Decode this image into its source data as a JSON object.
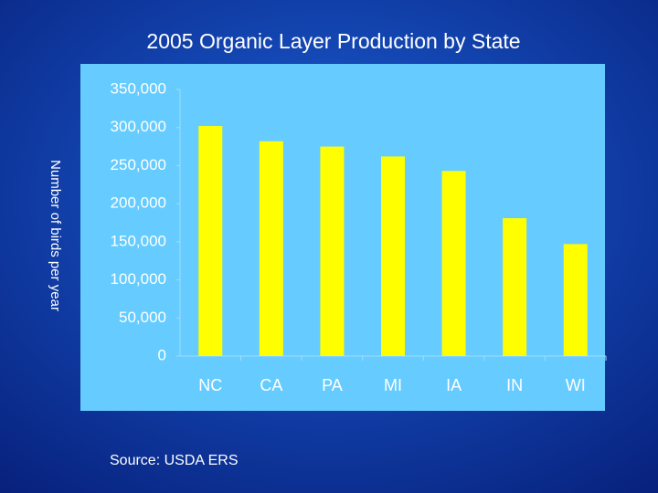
{
  "chart_data": {
    "type": "bar",
    "title": "2005 Organic Layer Production by State",
    "y_label": "Number of birds per year",
    "categories": [
      "NC",
      "CA",
      "PA",
      "MI",
      "IA",
      "IN",
      "WI"
    ],
    "values": [
      302000,
      282000,
      275000,
      262000,
      243000,
      181000,
      147000
    ],
    "color": "#ffff00",
    "ylim": [
      0,
      350000
    ],
    "yticks": [
      0,
      {
        "value": 50000,
        "label": "50,000"
      },
      {
        "value": 100000,
        "label": "100,000"
      },
      {
        "value": 150000,
        "label": "150,000"
      },
      {
        "value": 200000,
        "label": "200,000"
      },
      {
        "value": 250000,
        "label": "250,000"
      },
      {
        "value": 300000,
        "label": "300,000"
      },
      {
        "value": 350000,
        "label": "350,000"
      }
    ],
    "grid": false,
    "source": "Source: USDA ERS"
  }
}
